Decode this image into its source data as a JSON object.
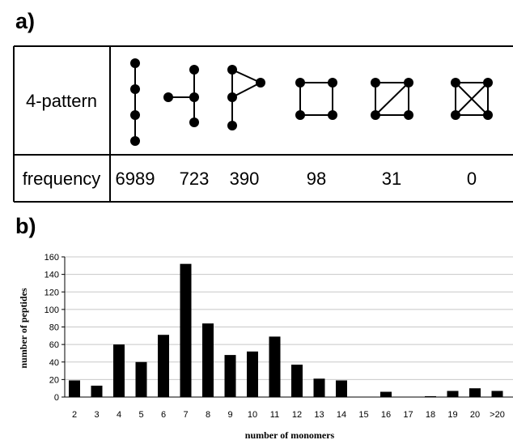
{
  "panel_a": {
    "label": "a)",
    "row1_header": "4-pattern",
    "row2_header": "frequency",
    "frequencies": [
      "6989",
      "723",
      "390",
      "98",
      "31",
      "0"
    ]
  },
  "panel_b": {
    "label": "b)"
  },
  "chart_data": {
    "type": "bar",
    "categories": [
      "2",
      "3",
      "4",
      "5",
      "6",
      "7",
      "8",
      "9",
      "10",
      "11",
      "12",
      "13",
      "14",
      "15",
      "16",
      "17",
      "18",
      "19",
      "20",
      ">20"
    ],
    "values": [
      19,
      13,
      60,
      40,
      71,
      152,
      84,
      48,
      52,
      69,
      37,
      21,
      19,
      0,
      6,
      0,
      1,
      7,
      10,
      7
    ],
    "xlabel": "number of monomers",
    "ylabel": "number of peptides",
    "ylim": [
      0,
      160
    ],
    "yticks": [
      0,
      20,
      40,
      60,
      80,
      100,
      120,
      140,
      160
    ],
    "grid": true,
    "bar_color": "#000000",
    "grid_color": "#c8c8c8"
  }
}
